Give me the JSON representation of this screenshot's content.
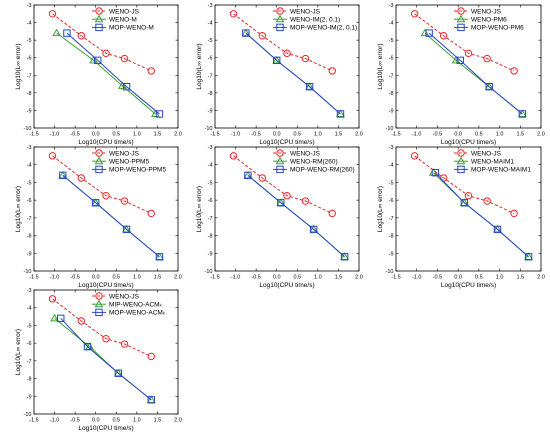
{
  "chart_data": [
    {
      "type": "line",
      "xlabel": "Log10(CPU time/s)",
      "ylabel": "Log10(L∞ error)",
      "xlim": [
        -1.5,
        2.0
      ],
      "ylim": [
        -10,
        -3
      ],
      "legend_position": "top-right",
      "series": [
        {
          "name": "WENO-JS",
          "color": "#e8262a",
          "marker": "circle",
          "dash": true,
          "x": [
            -1.05,
            -0.35,
            0.25,
            0.7,
            1.35
          ],
          "y": [
            -3.5,
            -4.75,
            -5.75,
            -6.05,
            -6.75
          ]
        },
        {
          "name": "WENO-M",
          "color": "#3aa035",
          "marker": "triangle",
          "dash": false,
          "x": [
            -0.95,
            -0.05,
            0.65,
            1.45
          ],
          "y": [
            -4.6,
            -6.15,
            -7.6,
            -9.2
          ]
        },
        {
          "name": "MOP-WENO-M",
          "color": "#2b45c7",
          "marker": "square",
          "dash": false,
          "x": [
            -0.7,
            0.05,
            0.75,
            1.55
          ],
          "y": [
            -4.6,
            -6.15,
            -7.65,
            -9.2
          ]
        }
      ]
    },
    {
      "type": "line",
      "xlabel": "Log10(CPU time/s)",
      "ylabel": "Log10(L∞ error)",
      "xlim": [
        -1.5,
        2.0
      ],
      "ylim": [
        -10,
        -3
      ],
      "legend_position": "top-right",
      "series": [
        {
          "name": "WENO-JS",
          "color": "#e8262a",
          "marker": "circle",
          "dash": true,
          "x": [
            -1.05,
            -0.35,
            0.25,
            0.7,
            1.35
          ],
          "y": [
            -3.5,
            -4.75,
            -5.75,
            -6.05,
            -6.75
          ]
        },
        {
          "name": "WENO-IM(2, 0.1)",
          "color": "#3aa035",
          "marker": "triangle",
          "dash": false,
          "x": [
            -0.75,
            0.0,
            0.8,
            1.55
          ],
          "y": [
            -4.6,
            -6.15,
            -7.65,
            -9.2
          ]
        },
        {
          "name": "MOP-WENO-IM(2, 0.1)",
          "color": "#2b45c7",
          "marker": "square",
          "dash": false,
          "x": [
            -0.75,
            0.0,
            0.8,
            1.55
          ],
          "y": [
            -4.6,
            -6.15,
            -7.65,
            -9.2
          ]
        }
      ]
    },
    {
      "type": "line",
      "xlabel": "Log10(CPU time/s)",
      "ylabel": "Log10(L∞ error)",
      "xlim": [
        -1.5,
        2.0
      ],
      "ylim": [
        -10,
        -3
      ],
      "legend_position": "top-right",
      "series": [
        {
          "name": "WENO-JS",
          "color": "#e8262a",
          "marker": "circle",
          "dash": true,
          "x": [
            -1.05,
            -0.35,
            0.25,
            0.7,
            1.35
          ],
          "y": [
            -3.5,
            -4.75,
            -5.75,
            -6.05,
            -6.75
          ]
        },
        {
          "name": "WENO-PM6",
          "color": "#3aa035",
          "marker": "triangle",
          "dash": false,
          "x": [
            -0.8,
            -0.05,
            0.75,
            1.55
          ],
          "y": [
            -4.6,
            -6.15,
            -7.65,
            -9.2
          ]
        },
        {
          "name": "MOP-WENO-PM6",
          "color": "#2b45c7",
          "marker": "square",
          "dash": false,
          "x": [
            -0.7,
            0.05,
            0.75,
            1.55
          ],
          "y": [
            -4.6,
            -6.15,
            -7.65,
            -9.2
          ]
        }
      ]
    },
    {
      "type": "line",
      "xlabel": "Log10(CPU time/s)",
      "ylabel": "Log10(L∞ error)",
      "xlim": [
        -1.5,
        2.0
      ],
      "ylim": [
        -10,
        -3
      ],
      "legend_position": "top-right",
      "series": [
        {
          "name": "WENO-JS",
          "color": "#e8262a",
          "marker": "circle",
          "dash": true,
          "x": [
            -1.05,
            -0.35,
            0.25,
            0.7,
            1.35
          ],
          "y": [
            -3.5,
            -4.75,
            -5.75,
            -6.05,
            -6.75
          ]
        },
        {
          "name": "WENO-PPM5",
          "color": "#3aa035",
          "marker": "triangle",
          "dash": false,
          "x": [
            -0.8,
            0.0,
            0.75,
            1.55
          ],
          "y": [
            -4.6,
            -6.15,
            -7.65,
            -9.2
          ]
        },
        {
          "name": "MOP-WENO-PPM5",
          "color": "#2b45c7",
          "marker": "square",
          "dash": false,
          "x": [
            -0.8,
            0.0,
            0.75,
            1.55
          ],
          "y": [
            -4.6,
            -6.15,
            -7.65,
            -9.2
          ]
        }
      ]
    },
    {
      "type": "line",
      "xlabel": "Log10(CPU time/s)",
      "ylabel": "Log10(L∞ error)",
      "xlim": [
        -1.5,
        2.0
      ],
      "ylim": [
        -10,
        -3
      ],
      "legend_position": "top-right",
      "series": [
        {
          "name": "WENO-JS",
          "color": "#e8262a",
          "marker": "circle",
          "dash": true,
          "x": [
            -1.05,
            -0.35,
            0.25,
            0.7,
            1.35
          ],
          "y": [
            -3.5,
            -4.75,
            -5.75,
            -6.05,
            -6.75
          ]
        },
        {
          "name": "WENO-RM(260)",
          "color": "#3aa035",
          "marker": "triangle",
          "dash": false,
          "x": [
            -0.7,
            0.1,
            0.9,
            1.65
          ],
          "y": [
            -4.6,
            -6.15,
            -7.65,
            -9.2
          ]
        },
        {
          "name": "MOP-WENO-RM(260)",
          "color": "#2b45c7",
          "marker": "square",
          "dash": false,
          "x": [
            -0.7,
            0.1,
            0.9,
            1.65
          ],
          "y": [
            -4.6,
            -6.15,
            -7.65,
            -9.2
          ]
        }
      ]
    },
    {
      "type": "line",
      "xlabel": "Log10(CPU time/s)",
      "ylabel": "Log10(L∞ error)",
      "xlim": [
        -1.5,
        2.0
      ],
      "ylim": [
        -10,
        -3
      ],
      "legend_position": "top-right",
      "series": [
        {
          "name": "WENO-JS",
          "color": "#e8262a",
          "marker": "circle",
          "dash": true,
          "x": [
            -1.05,
            -0.35,
            0.25,
            0.7,
            1.35
          ],
          "y": [
            -3.5,
            -4.75,
            -5.75,
            -6.05,
            -6.75
          ]
        },
        {
          "name": "WENO-MAIM1",
          "color": "#3aa035",
          "marker": "triangle",
          "dash": false,
          "x": [
            -0.6,
            0.15,
            0.95,
            1.7
          ],
          "y": [
            -4.45,
            -6.15,
            -7.65,
            -9.2
          ]
        },
        {
          "name": "MOP-WENO-MAIM1",
          "color": "#2b45c7",
          "marker": "square",
          "dash": false,
          "x": [
            -0.55,
            0.15,
            0.95,
            1.7
          ],
          "y": [
            -4.45,
            -6.15,
            -7.65,
            -9.2
          ]
        }
      ]
    },
    {
      "type": "line",
      "xlabel": "Log10(CPU time/s)",
      "ylabel": "Log10(L∞ error)",
      "xlim": [
        -1.5,
        2.0
      ],
      "ylim": [
        -10,
        -3
      ],
      "legend_position": "top-right",
      "series": [
        {
          "name": "WENO-JS",
          "color": "#e8262a",
          "marker": "circle",
          "dash": true,
          "x": [
            -1.05,
            -0.35,
            0.25,
            0.7,
            1.35
          ],
          "y": [
            -3.5,
            -4.75,
            -5.75,
            -6.05,
            -6.75
          ]
        },
        {
          "name": "MIP-WENO-ACMₖ",
          "color": "#3aa035",
          "marker": "triangle",
          "dash": false,
          "x": [
            -1.0,
            -0.15,
            0.55,
            1.35
          ],
          "y": [
            -4.6,
            -6.2,
            -7.7,
            -9.2
          ]
        },
        {
          "name": "MOP-WENO-ACMₖ",
          "color": "#2b45c7",
          "marker": "square",
          "dash": false,
          "x": [
            -0.85,
            -0.2,
            0.55,
            1.35
          ],
          "y": [
            -4.6,
            -6.2,
            -7.7,
            -9.2
          ]
        }
      ]
    }
  ]
}
